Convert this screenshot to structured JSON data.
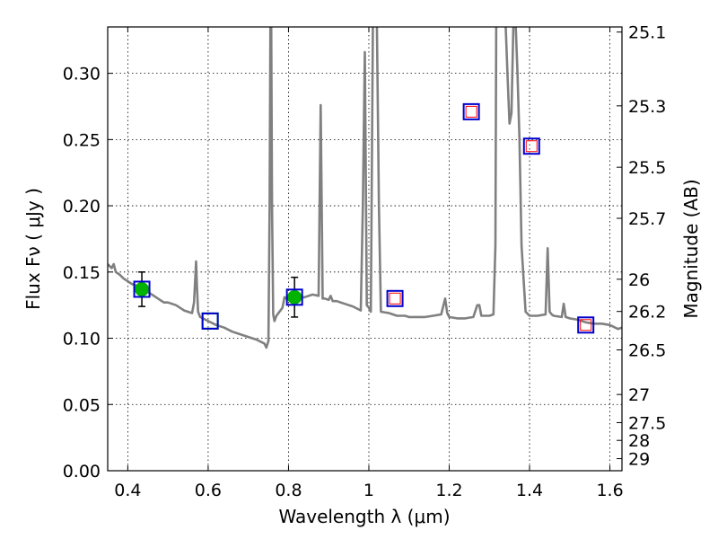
{
  "chart_data": {
    "type": "line",
    "title": "",
    "xlabel": "Wavelength  λ (μm)",
    "ylabel": "Flux  Fν  ( μJy )",
    "y2label": "Magnitude (AB)",
    "xlim": [
      0.35,
      1.63
    ],
    "ylim": [
      0.0,
      0.335
    ],
    "grid": true,
    "x_ticks": [
      {
        "value": 0.4,
        "label": "0.4"
      },
      {
        "value": 0.6,
        "label": "0.6"
      },
      {
        "value": 0.8,
        "label": "0.8"
      },
      {
        "value": 1.0,
        "label": "1"
      },
      {
        "value": 1.2,
        "label": "1.2"
      },
      {
        "value": 1.4,
        "label": "1.4"
      },
      {
        "value": 1.6,
        "label": "1.6"
      }
    ],
    "y_ticks": [
      {
        "value": 0.0,
        "label": "0.00"
      },
      {
        "value": 0.05,
        "label": "0.05"
      },
      {
        "value": 0.1,
        "label": "0.10"
      },
      {
        "value": 0.15,
        "label": "0.15"
      },
      {
        "value": 0.2,
        "label": "0.20"
      },
      {
        "value": 0.25,
        "label": "0.25"
      },
      {
        "value": 0.3,
        "label": "0.30"
      }
    ],
    "y2_ticks": [
      {
        "value": 25.1,
        "label": "25.1"
      },
      {
        "value": 25.3,
        "label": "25.3"
      },
      {
        "value": 25.5,
        "label": "25.5"
      },
      {
        "value": 25.7,
        "label": "25.7"
      },
      {
        "value": 26.0,
        "label": "26"
      },
      {
        "value": 26.2,
        "label": "26.2"
      },
      {
        "value": 26.5,
        "label": "26.5"
      },
      {
        "value": 27.0,
        "label": "27"
      },
      {
        "value": 27.5,
        "label": "27.5"
      },
      {
        "value": 28.0,
        "label": "28"
      },
      {
        "value": 29.0,
        "label": "29"
      }
    ],
    "model_spectrum": {
      "color": "#808080",
      "x": [
        0.35,
        0.36,
        0.365,
        0.37,
        0.38,
        0.39,
        0.4,
        0.41,
        0.42,
        0.43,
        0.44,
        0.45,
        0.46,
        0.47,
        0.48,
        0.49,
        0.5,
        0.52,
        0.54,
        0.56,
        0.565,
        0.57,
        0.572,
        0.575,
        0.58,
        0.6,
        0.62,
        0.64,
        0.66,
        0.68,
        0.7,
        0.72,
        0.74,
        0.745,
        0.75,
        0.753,
        0.755,
        0.757,
        0.759,
        0.762,
        0.765,
        0.77,
        0.78,
        0.785,
        0.79,
        0.795,
        0.8,
        0.82,
        0.84,
        0.86,
        0.875,
        0.88,
        0.885,
        0.89,
        0.9,
        0.905,
        0.91,
        0.92,
        0.94,
        0.96,
        0.98,
        0.985,
        0.99,
        0.995,
        1.0,
        1.005,
        1.01,
        1.015,
        1.02,
        1.025,
        1.03,
        1.05,
        1.07,
        1.09,
        1.1,
        1.12,
        1.14,
        1.16,
        1.18,
        1.19,
        1.195,
        1.2,
        1.22,
        1.24,
        1.26,
        1.27,
        1.275,
        1.28,
        1.3,
        1.31,
        1.315,
        1.317,
        1.32,
        1.33,
        1.34,
        1.345,
        1.35,
        1.355,
        1.36,
        1.365,
        1.37,
        1.375,
        1.38,
        1.39,
        1.4,
        1.42,
        1.44,
        1.445,
        1.45,
        1.455,
        1.46,
        1.48,
        1.485,
        1.49,
        1.5,
        1.52,
        1.54,
        1.56,
        1.58,
        1.6,
        1.62,
        1.63
      ],
      "y": [
        0.156,
        0.153,
        0.156,
        0.15,
        0.148,
        0.145,
        0.143,
        0.141,
        0.14,
        0.139,
        0.137,
        0.135,
        0.133,
        0.131,
        0.129,
        0.127,
        0.127,
        0.125,
        0.121,
        0.119,
        0.127,
        0.158,
        0.14,
        0.12,
        0.116,
        0.113,
        0.11,
        0.108,
        0.105,
        0.103,
        0.101,
        0.099,
        0.096,
        0.093,
        0.098,
        0.2,
        0.34,
        0.34,
        0.2,
        0.118,
        0.113,
        0.117,
        0.121,
        0.123,
        0.131,
        0.13,
        0.129,
        0.13,
        0.131,
        0.133,
        0.132,
        0.276,
        0.13,
        0.13,
        0.129,
        0.132,
        0.128,
        0.128,
        0.126,
        0.124,
        0.121,
        0.2,
        0.316,
        0.125,
        0.123,
        0.12,
        0.34,
        0.34,
        0.34,
        0.2,
        0.12,
        0.119,
        0.117,
        0.117,
        0.116,
        0.116,
        0.116,
        0.117,
        0.118,
        0.13,
        0.119,
        0.116,
        0.115,
        0.115,
        0.116,
        0.125,
        0.125,
        0.117,
        0.117,
        0.118,
        0.17,
        0.34,
        0.34,
        0.34,
        0.34,
        0.3,
        0.262,
        0.27,
        0.34,
        0.34,
        0.3,
        0.25,
        0.17,
        0.12,
        0.117,
        0.117,
        0.118,
        0.168,
        0.12,
        0.118,
        0.117,
        0.116,
        0.126,
        0.116,
        0.115,
        0.114,
        0.112,
        0.111,
        0.111,
        0.11,
        0.107,
        0.108
      ]
    },
    "photometry": [
      {
        "x": 0.435,
        "y": 0.137,
        "yerr": 0.013,
        "marker": "circle",
        "color": "#00b300"
      },
      {
        "x": 0.815,
        "y": 0.131,
        "yerr": 0.015,
        "marker": "circle",
        "color": "#00b300"
      },
      {
        "x": 0.605,
        "y": 0.113,
        "marker": "square",
        "color": "#00b300"
      },
      {
        "x": 0.435,
        "y": 0.137,
        "marker": "square",
        "color": "#0000cc"
      },
      {
        "x": 0.605,
        "y": 0.113,
        "marker": "square",
        "color": "#0000cc"
      },
      {
        "x": 0.815,
        "y": 0.131,
        "marker": "square",
        "color": "#0000cc"
      },
      {
        "x": 1.065,
        "y": 0.13,
        "marker": "square",
        "color": "#0000cc"
      },
      {
        "x": 1.255,
        "y": 0.271,
        "marker": "square",
        "color": "#0000cc"
      },
      {
        "x": 1.405,
        "y": 0.245,
        "marker": "square",
        "color": "#0000cc"
      },
      {
        "x": 1.54,
        "y": 0.11,
        "marker": "square",
        "color": "#0000cc"
      },
      {
        "x": 1.065,
        "y": 0.13,
        "marker": "square-small",
        "color": "#ff0000"
      },
      {
        "x": 1.255,
        "y": 0.271,
        "marker": "square-small",
        "color": "#ff0000"
      },
      {
        "x": 1.405,
        "y": 0.245,
        "marker": "square-small",
        "color": "#ff0000"
      },
      {
        "x": 1.54,
        "y": 0.11,
        "marker": "square-small",
        "color": "#ff0000"
      }
    ]
  }
}
